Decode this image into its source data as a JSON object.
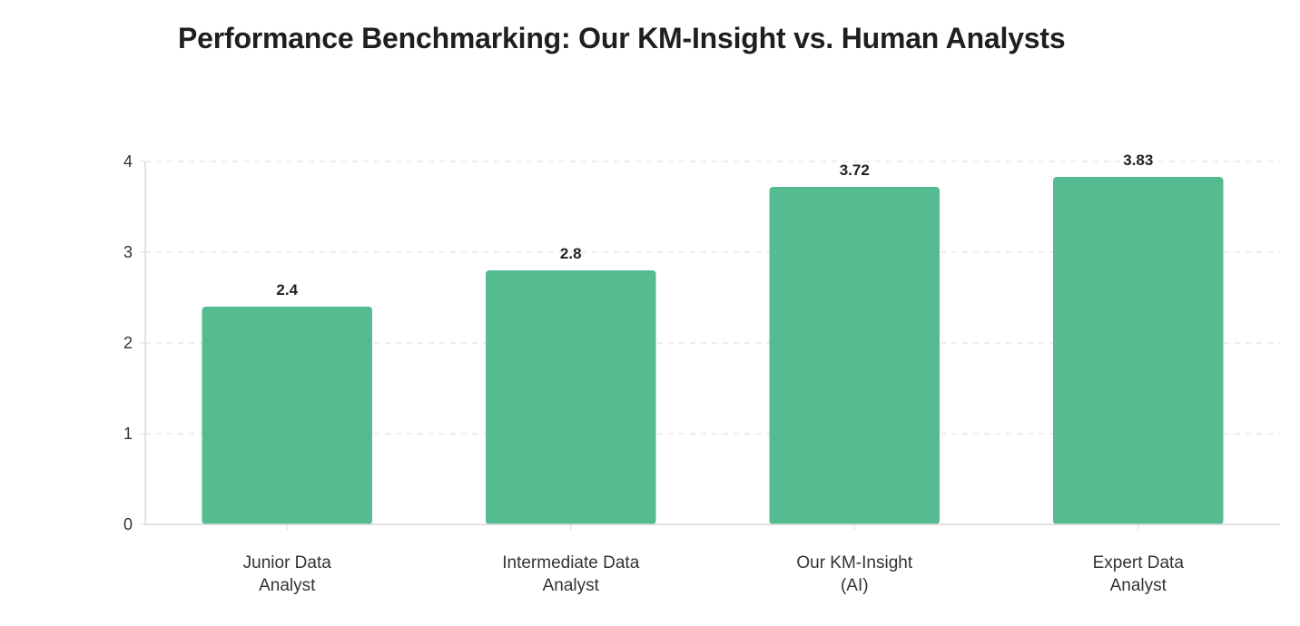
{
  "chart_data": {
    "type": "bar",
    "title": "Performance Benchmarking: Our KM-Insight vs. Human Analysts",
    "categories": [
      [
        "Junior Data",
        "Analyst"
      ],
      [
        "Intermediate Data",
        "Analyst"
      ],
      [
        "Our KM-Insight",
        "(AI)"
      ],
      [
        "Expert Data",
        "Analyst"
      ]
    ],
    "values": [
      2.4,
      2.8,
      3.72,
      3.83
    ],
    "value_labels": [
      "2.4",
      "2.8",
      "3.72",
      "3.83"
    ],
    "y_ticks": [
      "0",
      "1",
      "2",
      "3",
      "4"
    ],
    "ylim": [
      0,
      4
    ],
    "grid": true,
    "bar_color": "#55bb91",
    "grid_color": "#e3e3e3",
    "axis_color": "#d8d8d8"
  }
}
